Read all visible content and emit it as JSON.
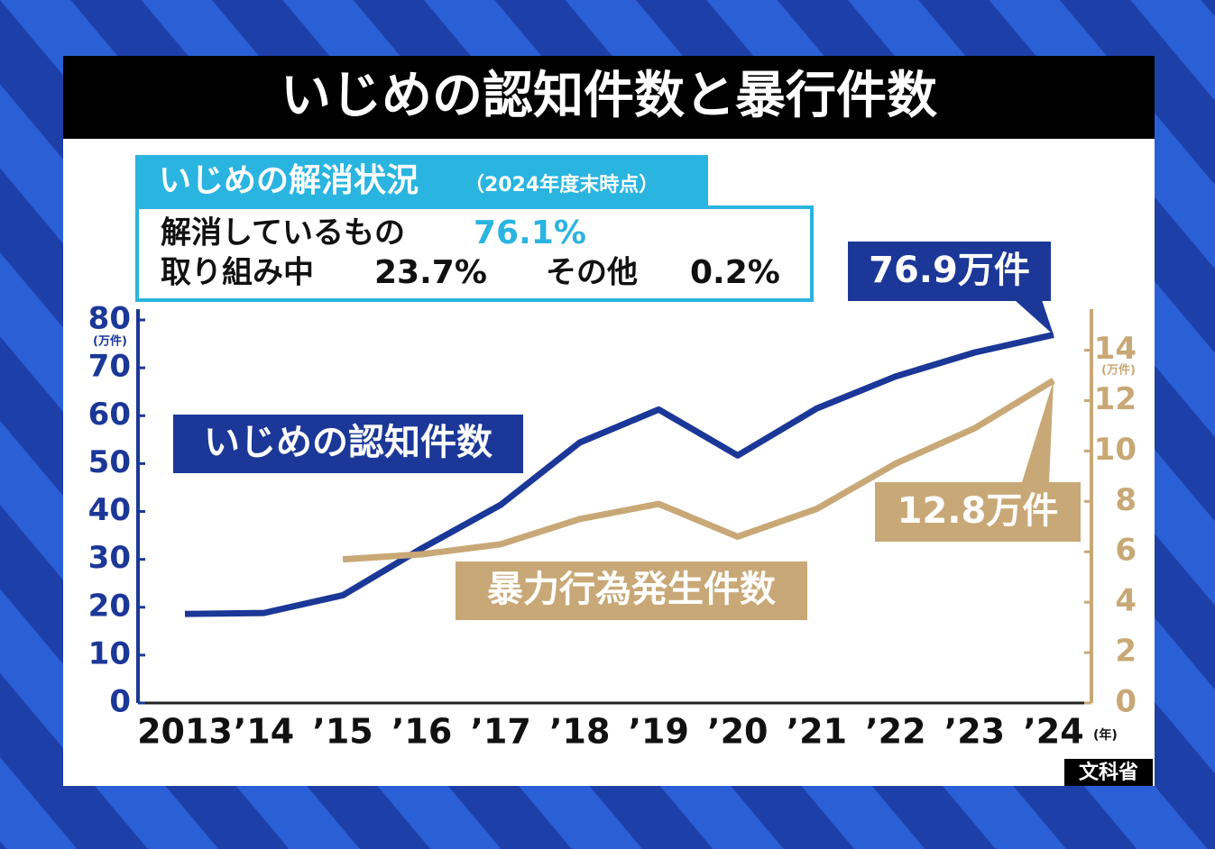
{
  "chart_data": {
    "type": "line",
    "title": "いじめの認知件数と暴行件数",
    "resolution": {
      "title": "いじめの解消状況",
      "note": "（2024年度末時点）",
      "items": [
        {
          "label": "解消しているもの",
          "value": "76.1%"
        },
        {
          "label": "取り組み中",
          "value": "23.7%"
        },
        {
          "label": "その他",
          "value": "0.2%"
        }
      ]
    },
    "categories": [
      "2013",
      "’14",
      "’15",
      "’16",
      "’17",
      "’18",
      "’19",
      "’20",
      "’21",
      "’22",
      "’23",
      "’24"
    ],
    "x_unit": "(年)",
    "y_unit": "(万件)",
    "y2_unit": "(万件)",
    "ylim": [
      0,
      80
    ],
    "yticks": [
      0,
      10,
      20,
      30,
      40,
      50,
      60,
      70,
      80
    ],
    "y2lim": [
      0,
      15.2
    ],
    "y2ticks": [
      0,
      2,
      4,
      6,
      8,
      10,
      12,
      14
    ],
    "series": [
      {
        "name": "いじめの認知件数",
        "color": "#1b3797",
        "values": [
          18.6,
          18.8,
          22.5,
          32.3,
          41.4,
          54.4,
          61.3,
          51.7,
          61.5,
          68.2,
          73.2,
          76.9
        ],
        "value_labels": [
          null,
          null,
          null,
          null,
          null,
          null,
          null,
          null,
          null,
          null,
          null,
          "76.9万件"
        ]
      },
      {
        "name": "暴力行為発生件数",
        "color": "#c8a876",
        "axis": "y2",
        "values": [
          null,
          null,
          5.7,
          5.9,
          6.3,
          7.3,
          7.9,
          6.6,
          7.7,
          9.5,
          10.9,
          12.8
        ],
        "value_labels": [
          null,
          null,
          null,
          null,
          null,
          null,
          null,
          null,
          null,
          null,
          null,
          "12.8万件"
        ]
      }
    ],
    "source": "文科省"
  }
}
